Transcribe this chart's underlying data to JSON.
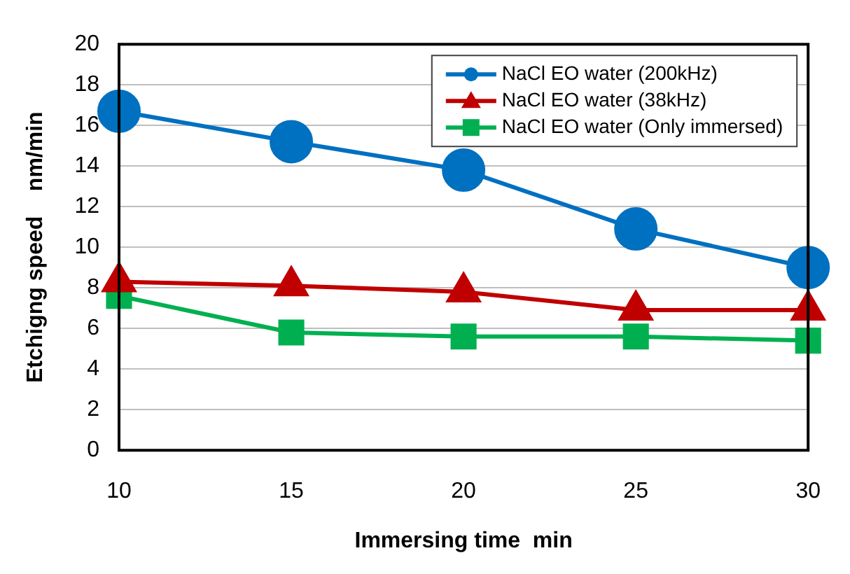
{
  "chart_data": {
    "type": "line",
    "xlabel": "Immersing time  min",
    "ylabel": "Etchigng speed    nm/min",
    "x": [
      10,
      15,
      20,
      25,
      30
    ],
    "series": [
      {
        "name": "NaCl EO water (200kHz)",
        "color": "#0070c0",
        "values": [
          16.7,
          15.2,
          13.8,
          10.9,
          9.0
        ],
        "marker": "circle"
      },
      {
        "name": "NaCl EO water (38kHz)",
        "color": "#c00000",
        "values": [
          8.3,
          8.1,
          7.8,
          6.9,
          6.9
        ],
        "marker": "triangle"
      },
      {
        "name": "NaCl EO water (Only immersed)",
        "color": "#00b050",
        "values": [
          7.6,
          5.8,
          5.6,
          5.6,
          5.4
        ],
        "marker": "square"
      }
    ],
    "xlim": [
      10,
      30
    ],
    "xticks": [
      10,
      15,
      20,
      25,
      30
    ],
    "ylim": [
      0,
      20
    ],
    "yticks": [
      0,
      2,
      4,
      6,
      8,
      10,
      12,
      14,
      16,
      18,
      20
    ],
    "grid": "y",
    "legend": "top right",
    "line_style": "solid"
  }
}
